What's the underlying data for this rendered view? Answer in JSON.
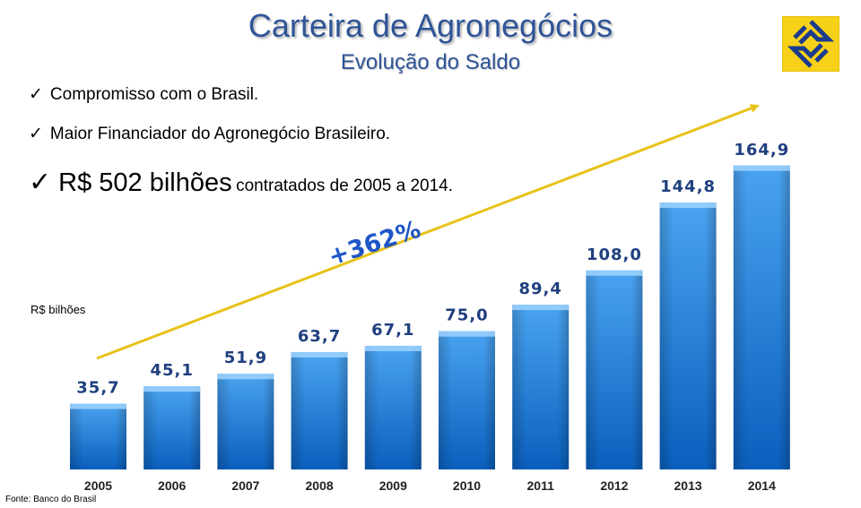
{
  "header": {
    "title": "Carteira de Agronegócios",
    "subtitle": "Evolução do Saldo"
  },
  "bullets": [
    {
      "check": "✓",
      "text": "Compromisso com o Brasil."
    },
    {
      "check": "✓",
      "text": "Maior Financiador do Agronegócio Brasileiro."
    },
    {
      "check": "✓",
      "text_large": "R$ 502 bilhões",
      "text_small": "contratados de 2005 a 2014."
    }
  ],
  "annotation": {
    "growth": "+362%"
  },
  "colors": {
    "title": "#2f5497",
    "bar_top": "#4aa3f0",
    "bar_bottom": "#0a5fbd",
    "bar_cap": "#9fd3ff",
    "arrow": "#e8c21a",
    "label": "#1f3f7f",
    "logo_bg": "#f7d117",
    "logo_mark": "#1c3b8c"
  },
  "logo": {
    "icon": "banco-do-brasil-logo-icon"
  },
  "chart_data": {
    "type": "bar",
    "title": "Evolução do Saldo",
    "ylabel": "R$ bilhões",
    "xlabel": "",
    "categories": [
      "2005",
      "2006",
      "2007",
      "2008",
      "2009",
      "2010",
      "2011",
      "2012",
      "2013",
      "2014"
    ],
    "values": [
      35.7,
      45.1,
      51.9,
      63.7,
      67.1,
      75.0,
      89.4,
      108.0,
      144.8,
      164.9
    ],
    "value_labels": [
      "35,7",
      "45,1",
      "51,9",
      "63,7",
      "67,1",
      "75,0",
      "89,4",
      "108,0",
      "144,8",
      "164,9"
    ],
    "ylim": [
      0,
      175
    ],
    "grid": false,
    "legend": "none"
  },
  "footer": {
    "source": "Fonte: Banco do Brasil"
  }
}
